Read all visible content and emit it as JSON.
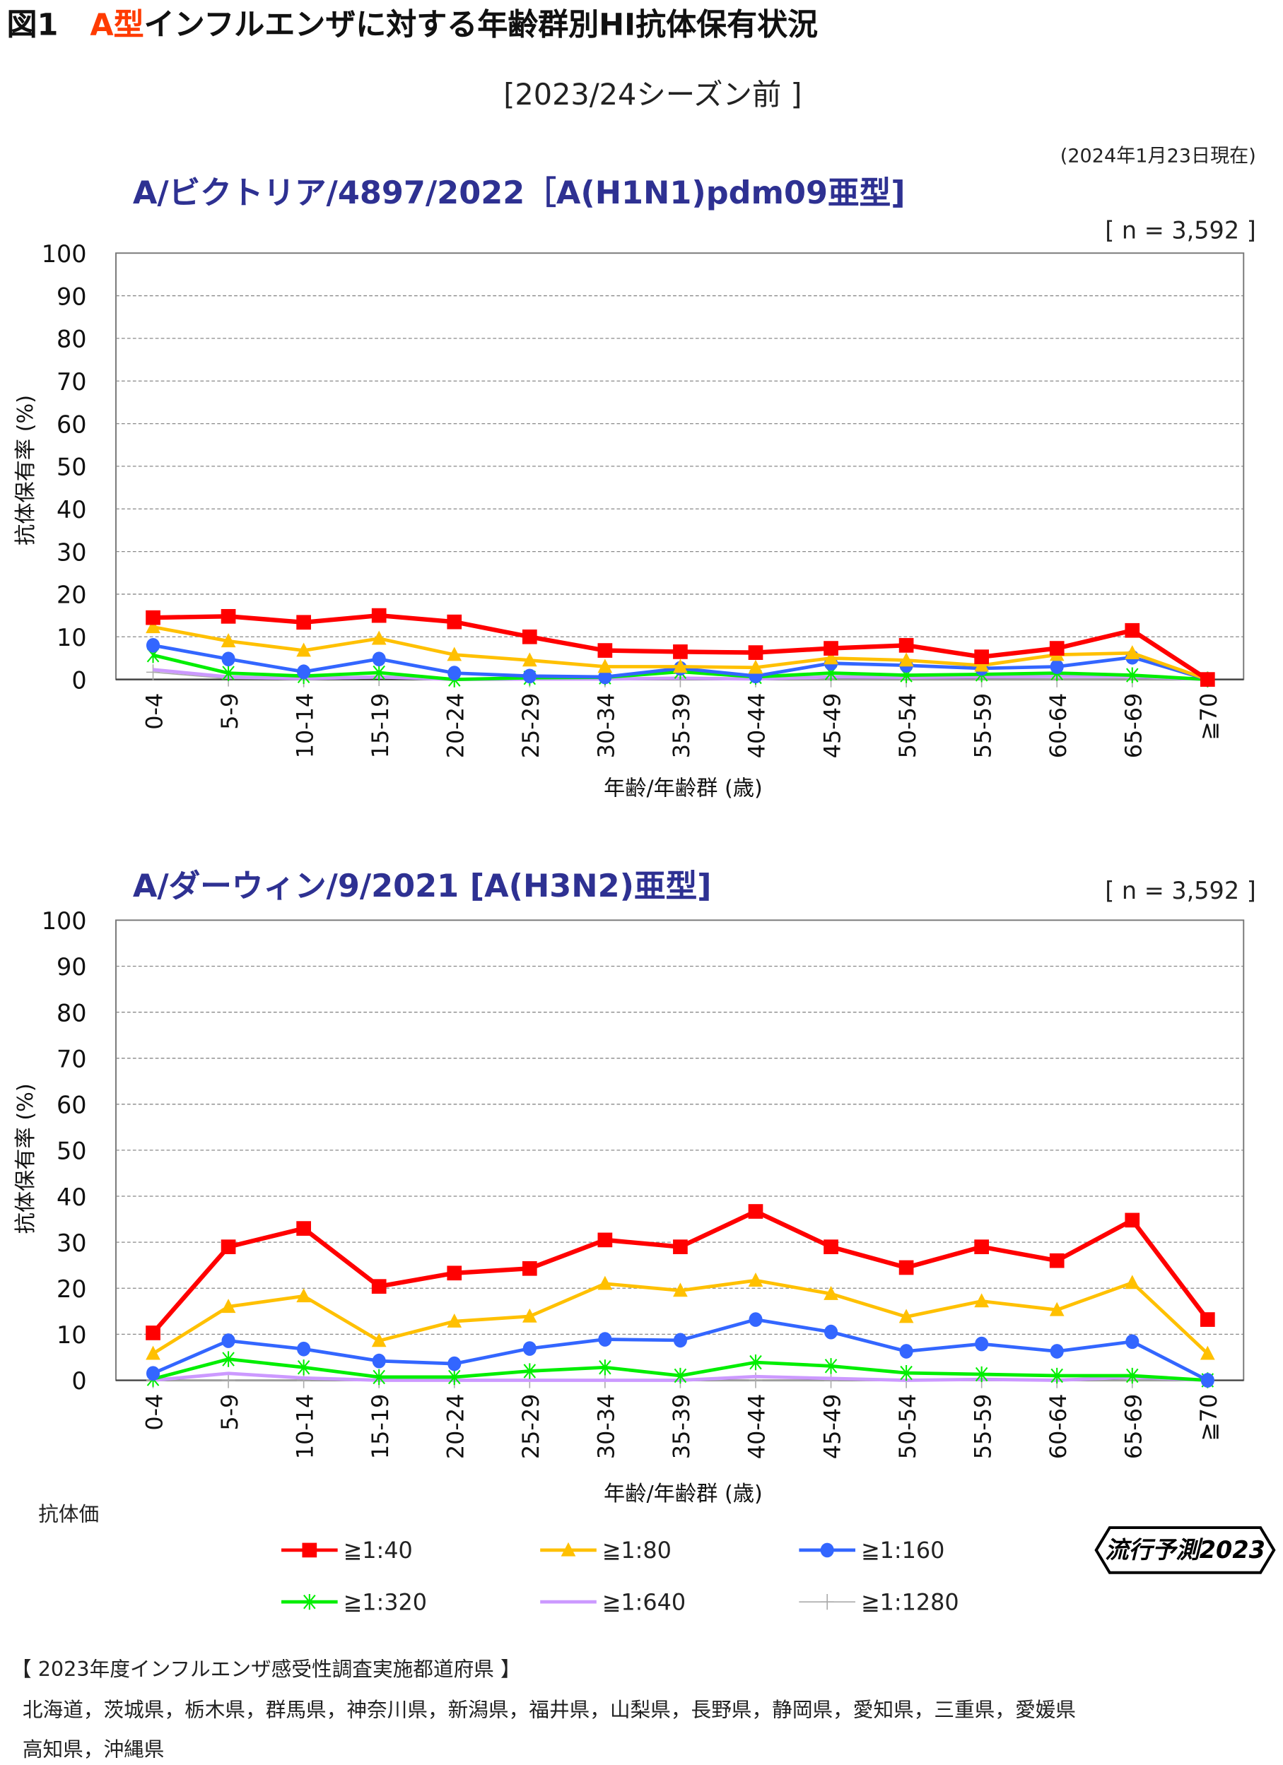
{
  "header": {
    "fig": "図1",
    "title_accent": "A型",
    "title_rest": "インフルエンザに対する年齢群別HI抗体保有状況",
    "subtitle": "[2023/24シーズン前 ]",
    "as_of": "(2024年1月23日現在)"
  },
  "legend": {
    "heading": "抗体価"
  },
  "logo_text": "流行予測2023",
  "footer": {
    "heading": "【 2023年度インフルエンザ感受性調査実施都道府県 】",
    "line1": "北海道，茨城県，栃木県，群馬県，神奈川県，新潟県，福井県，山梨県，長野県，静岡県，愛知県，三重県，愛媛県",
    "line2": "高知県，沖縄県"
  },
  "chart_data": [
    {
      "type": "line",
      "title": "A/ビクトリア/4897/2022［A(H1N1)pdm09亜型]",
      "n_label": "[ n = 3,592 ]",
      "xlabel": "年齢/年齢群 (歳)",
      "ylabel": "抗体保有率 (%)",
      "ylim": [
        0,
        100
      ],
      "yticks": [
        0,
        10,
        20,
        30,
        40,
        50,
        60,
        70,
        80,
        90,
        100
      ],
      "grid": true,
      "categories": [
        "0-4",
        "5-9",
        "10-14",
        "15-19",
        "20-24",
        "25-29",
        "30-34",
        "35-39",
        "40-44",
        "45-49",
        "50-54",
        "55-59",
        "60-64",
        "65-69",
        "≧70"
      ],
      "series": [
        {
          "name": "≧1:40",
          "color": "#ff0000",
          "marker": "square",
          "values": [
            14.5,
            14.8,
            13.4,
            15,
            13.5,
            10,
            6.8,
            6.5,
            6.3,
            7.3,
            8,
            5.3,
            7.3,
            11.5,
            0
          ]
        },
        {
          "name": "≧1:80",
          "color": "#ffc000",
          "marker": "triangle",
          "values": [
            12.3,
            9,
            6.8,
            9.6,
            5.8,
            4.5,
            3,
            3,
            2.8,
            5,
            4.5,
            3.3,
            5.8,
            6.2,
            0
          ]
        },
        {
          "name": "≧1:160",
          "color": "#3366ff",
          "marker": "circle",
          "values": [
            8,
            4.8,
            1.8,
            4.8,
            1.5,
            0.8,
            0.6,
            2.6,
            0.8,
            3.8,
            3.3,
            2.6,
            3,
            5.2,
            0
          ]
        },
        {
          "name": "≧1:320",
          "color": "#00ee00",
          "marker": "star",
          "values": [
            5.7,
            1.5,
            0.8,
            1.6,
            0,
            0.4,
            0.5,
            1.8,
            0.6,
            1.5,
            1,
            1.2,
            1.5,
            1,
            0
          ]
        },
        {
          "name": "≧1:640",
          "color": "#cc99ff",
          "marker": "none",
          "values": [
            2.3,
            0.6,
            0.2,
            0.6,
            0,
            0.1,
            0.1,
            0.3,
            0.1,
            0.6,
            0.5,
            0.6,
            0.7,
            0.7,
            0
          ]
        },
        {
          "name": "≧1:1280",
          "color": "#aaaaaa",
          "marker": "plus",
          "values": [
            1.7,
            0.2,
            0,
            0.3,
            0,
            0,
            0,
            0,
            0,
            0,
            0,
            0,
            0,
            0,
            0
          ]
        }
      ]
    },
    {
      "type": "line",
      "title": "A/ダーウィン/9/2021 [A(H3N2)亜型]",
      "n_label": "[ n = 3,592 ]",
      "xlabel": "年齢/年齢群 (歳)",
      "ylabel": "抗体保有率 (%)",
      "ylim": [
        0,
        100
      ],
      "yticks": [
        0,
        10,
        20,
        30,
        40,
        50,
        60,
        70,
        80,
        90,
        100
      ],
      "grid": true,
      "categories": [
        "0-4",
        "5-9",
        "10-14",
        "15-19",
        "20-24",
        "25-29",
        "30-34",
        "35-39",
        "40-44",
        "45-49",
        "50-54",
        "55-59",
        "60-64",
        "65-69",
        "≧70"
      ],
      "series": [
        {
          "name": "≧1:40",
          "color": "#ff0000",
          "marker": "square",
          "values": [
            10.3,
            29,
            33,
            20.4,
            23.3,
            24.3,
            30.5,
            29,
            36.7,
            29,
            24.5,
            29,
            26,
            34.8,
            13.2
          ]
        },
        {
          "name": "≧1:80",
          "color": "#ffc000",
          "marker": "triangle",
          "values": [
            5.8,
            16,
            18.3,
            8.6,
            12.8,
            13.9,
            21,
            19.5,
            21.7,
            18.8,
            13.8,
            17.2,
            15.3,
            21.2,
            5.8
          ]
        },
        {
          "name": "≧1:160",
          "color": "#3366ff",
          "marker": "circle",
          "values": [
            1.5,
            8.6,
            6.8,
            4.2,
            3.6,
            6.9,
            8.9,
            8.7,
            13.2,
            10.5,
            6.3,
            7.9,
            6.3,
            8.4,
            0
          ]
        },
        {
          "name": "≧1:320",
          "color": "#00ee00",
          "marker": "star",
          "values": [
            0.3,
            4.6,
            2.8,
            0.7,
            0.7,
            2,
            2.8,
            1,
            3.9,
            3.1,
            1.6,
            1.3,
            1,
            1,
            0
          ]
        },
        {
          "name": "≧1:640",
          "color": "#cc99ff",
          "marker": "none",
          "values": [
            0,
            1.5,
            0.5,
            0,
            0,
            0,
            0,
            0,
            0.8,
            0.4,
            0,
            0.2,
            0,
            0.7,
            0
          ]
        },
        {
          "name": "≧1:1280",
          "color": "#aaaaaa",
          "marker": "plus",
          "values": [
            0,
            0,
            0,
            0,
            0,
            0,
            0,
            0,
            0,
            0,
            0,
            0,
            0,
            0,
            0
          ]
        }
      ]
    }
  ]
}
